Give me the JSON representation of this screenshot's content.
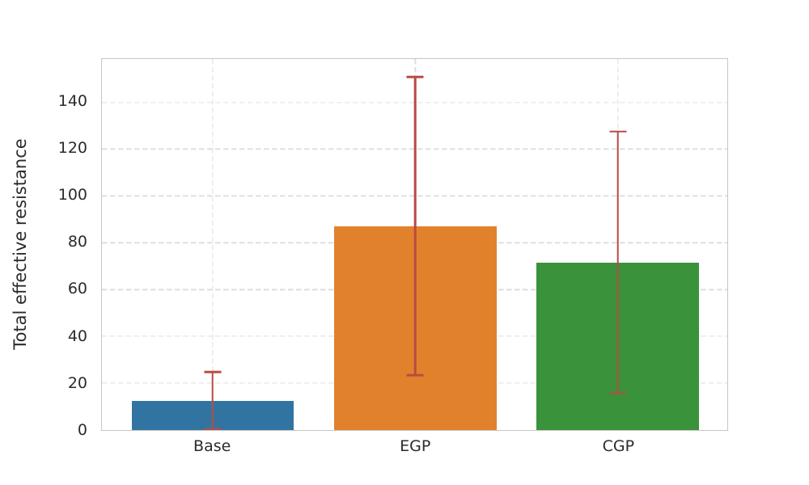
{
  "figure": {
    "background": "#ffffff",
    "spine_color": "#c6c6c6",
    "grid_color": "#dedede",
    "text_color": "#2b2b2b"
  },
  "chart_data": {
    "type": "bar",
    "title": "",
    "xlabel": "",
    "ylabel": "Total effective resistance",
    "categories": [
      "Base",
      "EGP",
      "CGP"
    ],
    "values": [
      12.6,
      87.1,
      71.6
    ],
    "error_bars": [
      12.1,
      63.7,
      55.9
    ],
    "error_low": [
      0.5,
      23.4,
      15.7
    ],
    "error_high": [
      24.7,
      150.8,
      127.5
    ],
    "bar_colors": [
      "#3274a1",
      "#e1812c",
      "#3a923a"
    ],
    "error_bar_color": "#bb4a44",
    "yticks": [
      0,
      20,
      40,
      60,
      80,
      100,
      120,
      140
    ],
    "ylim": [
      0,
      158.5
    ],
    "grid": "dashed horizontal and vertical",
    "legend_position": "none"
  }
}
